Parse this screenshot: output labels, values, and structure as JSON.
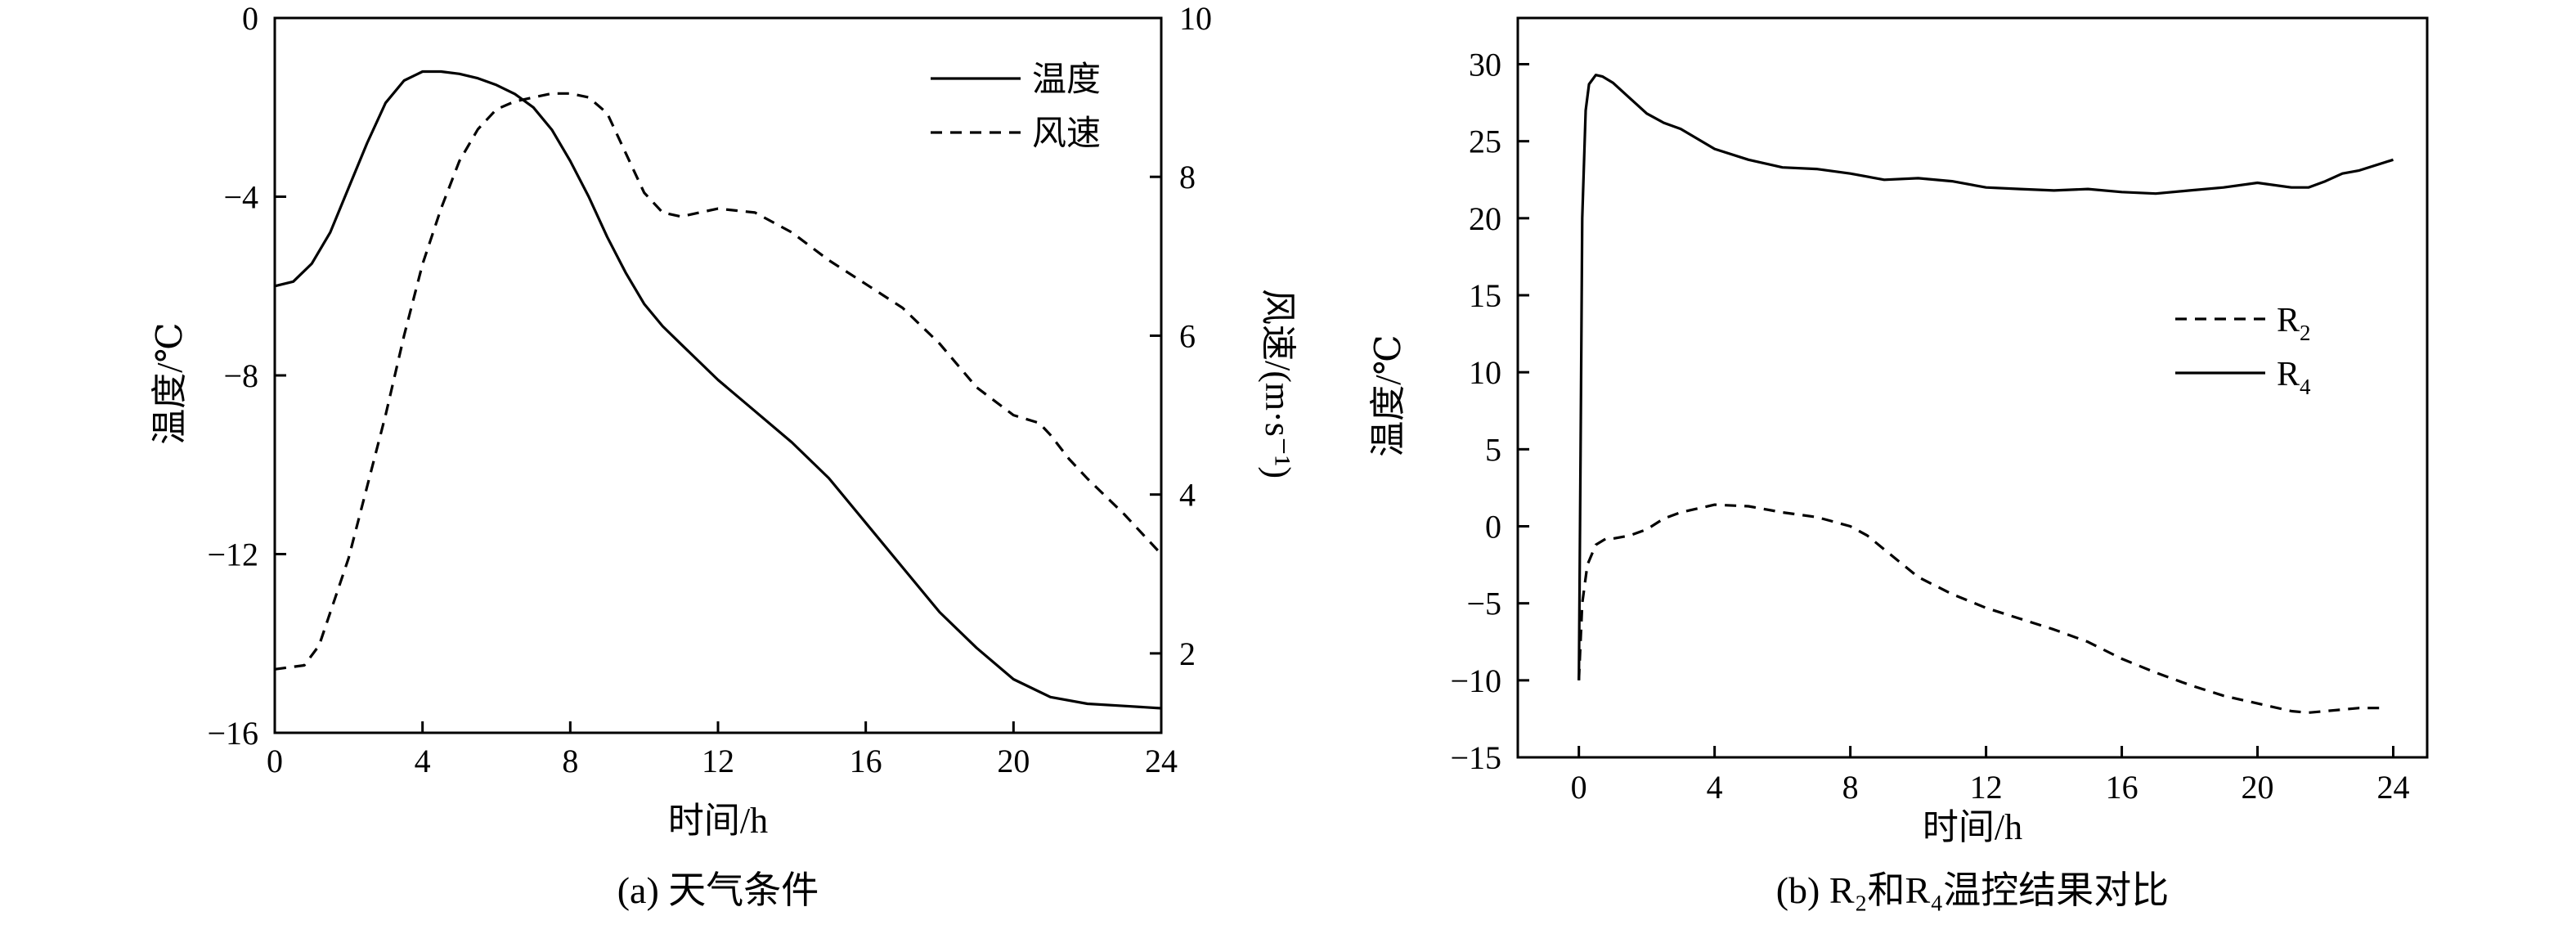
{
  "chart_data": [
    {
      "type": "line",
      "caption": "(a) 天气条件",
      "xlabel": "时间/h",
      "ylabel": "温度/℃",
      "y2label": "风速/(m·s⁻¹)",
      "xlim": [
        0,
        24
      ],
      "ylim": [
        -16,
        0
      ],
      "y2lim": [
        1,
        10
      ],
      "xticks": [
        "0",
        "4",
        "8",
        "12",
        "16",
        "20",
        "24"
      ],
      "yticks": [
        "0",
        "−4",
        "−8",
        "−12",
        "−16"
      ],
      "y2ticks": [
        "10",
        "8",
        "6",
        "4",
        "2"
      ],
      "grid": false,
      "legend_position": "top-right",
      "series": [
        {
          "name": "温度",
          "axis": "left",
          "style": "solid",
          "x": [
            0,
            0.5,
            1,
            1.5,
            2,
            2.5,
            3,
            3.5,
            4,
            4.5,
            5,
            5.5,
            6,
            6.5,
            7,
            7.5,
            8,
            8.5,
            9,
            9.5,
            10,
            10.5,
            11,
            11.5,
            12,
            13,
            14,
            15,
            16,
            17,
            18,
            19,
            20,
            21,
            22,
            23,
            24
          ],
          "y": [
            -6.0,
            -5.9,
            -5.5,
            -4.8,
            -3.8,
            -2.8,
            -1.9,
            -1.4,
            -1.2,
            -1.2,
            -1.25,
            -1.35,
            -1.5,
            -1.7,
            -2.0,
            -2.5,
            -3.2,
            -4.0,
            -4.9,
            -5.7,
            -6.4,
            -6.9,
            -7.3,
            -7.7,
            -8.1,
            -8.8,
            -9.5,
            -10.3,
            -11.3,
            -12.3,
            -13.3,
            -14.1,
            -14.8,
            -15.2,
            -15.35,
            -15.4,
            -15.45
          ]
        },
        {
          "name": "风速",
          "axis": "right",
          "style": "dashed",
          "x": [
            0,
            0.8,
            1.2,
            2,
            2.5,
            3,
            3.5,
            4,
            4.5,
            5,
            5.5,
            6,
            6.5,
            7,
            7.5,
            8,
            8.5,
            9,
            9.5,
            10,
            10.5,
            11,
            11.5,
            12,
            13,
            14,
            15,
            16,
            17,
            18,
            19,
            20,
            20.7,
            21,
            21.5,
            22,
            23,
            24
          ],
          "y": [
            1.8,
            1.85,
            2.1,
            3.2,
            4.1,
            5.0,
            6.0,
            6.9,
            7.6,
            8.2,
            8.6,
            8.85,
            8.95,
            9.0,
            9.05,
            9.05,
            9.0,
            8.8,
            8.3,
            7.8,
            7.55,
            7.5,
            7.55,
            7.6,
            7.55,
            7.3,
            6.95,
            6.65,
            6.35,
            5.9,
            5.35,
            5.0,
            4.9,
            4.75,
            4.45,
            4.2,
            3.75,
            3.25
          ]
        }
      ]
    },
    {
      "type": "line",
      "caption": "(b) R₂和R₄温控结果对比",
      "xlabel": "时间/h",
      "ylabel": "温度/℃",
      "xlim": [
        -1.8,
        25
      ],
      "ylim": [
        -15,
        33
      ],
      "xticks": [
        "0",
        "4",
        "8",
        "12",
        "16",
        "20",
        "24"
      ],
      "yticks": [
        "30",
        "25",
        "20",
        "15",
        "10",
        "5",
        "0",
        "−5",
        "−10",
        "−15"
      ],
      "grid": false,
      "legend_position": "center-right",
      "series": [
        {
          "name": "R2",
          "style": "dashed",
          "x": [
            0,
            0.1,
            0.25,
            0.5,
            0.8,
            1,
            1.5,
            2,
            2.5,
            3,
            4,
            5,
            6,
            7,
            7.5,
            8,
            8.5,
            9,
            9.5,
            10,
            11,
            12,
            13,
            14,
            15,
            16,
            17,
            18,
            19,
            20,
            21,
            21.5,
            22,
            23,
            23.8
          ],
          "y": [
            -10,
            -5,
            -2.5,
            -1.2,
            -0.8,
            -0.8,
            -0.6,
            -0.2,
            0.5,
            0.9,
            1.4,
            1.3,
            0.9,
            0.6,
            0.3,
            0,
            -0.6,
            -1.5,
            -2.4,
            -3.3,
            -4.4,
            -5.3,
            -6.0,
            -6.7,
            -7.5,
            -8.6,
            -9.5,
            -10.3,
            -11.0,
            -11.5,
            -12.0,
            -12.1,
            -12.0,
            -11.8,
            -11.8
          ]
        },
        {
          "name": "R4",
          "style": "solid",
          "x": [
            0,
            0.05,
            0.1,
            0.2,
            0.3,
            0.5,
            0.7,
            1,
            1.5,
            2,
            2.5,
            3,
            4,
            5,
            6,
            7,
            8,
            9,
            10,
            11,
            12,
            13,
            14,
            15,
            16,
            17,
            18,
            19,
            20,
            21,
            21.5,
            22,
            22.5,
            23,
            24
          ],
          "y": [
            -10,
            5,
            20,
            27,
            28.7,
            29.3,
            29.2,
            28.8,
            27.8,
            26.8,
            26.2,
            25.8,
            24.5,
            23.8,
            23.3,
            23.2,
            22.9,
            22.5,
            22.6,
            22.4,
            22.0,
            21.9,
            21.8,
            21.9,
            21.7,
            21.6,
            21.8,
            22.0,
            22.3,
            22.0,
            22.0,
            22.4,
            22.9,
            23.1,
            23.8
          ]
        }
      ]
    }
  ]
}
